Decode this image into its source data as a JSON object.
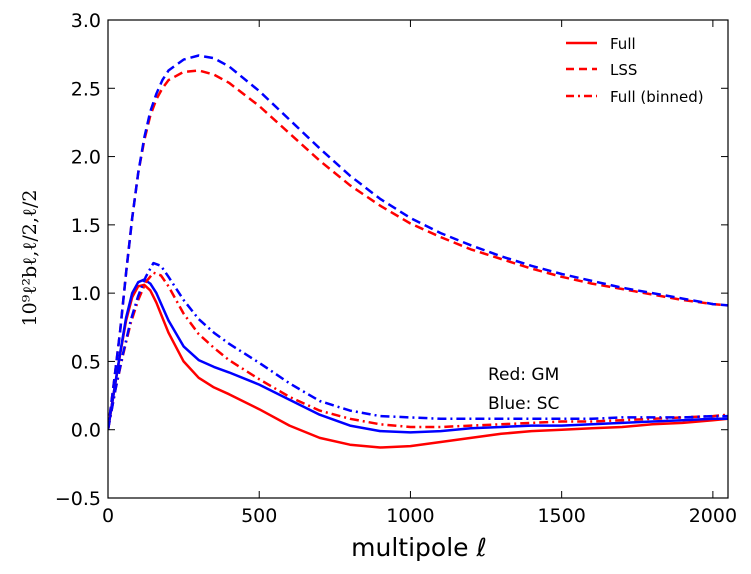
{
  "chart_data": {
    "type": "line",
    "title": "",
    "xlabel": "multipole ℓ",
    "ylabel": "10⁹ℓ²bℓ,ℓ/2,ℓ/2",
    "xlim": [
      0,
      2050
    ],
    "ylim": [
      -0.5,
      3.0
    ],
    "grid": false,
    "legend_position": "top-right",
    "xticks": [
      0,
      500,
      1000,
      1500,
      2000
    ],
    "xtick_labels": [
      "0",
      "500",
      "1000",
      "1500",
      "2000"
    ],
    "yticks": [
      -0.5,
      0.0,
      0.5,
      1.0,
      1.5,
      2.0,
      2.5,
      3.0
    ],
    "ytick_labels": [
      "−0.5",
      "0.0",
      "0.5",
      "1.0",
      "1.5",
      "2.0",
      "2.5",
      "3.0"
    ],
    "legend": [
      {
        "label": "Full",
        "style": "solid",
        "color": "#ff0000"
      },
      {
        "label": "LSS",
        "style": "dashed",
        "color": "#ff0000"
      },
      {
        "label": "Full (binned)",
        "style": "dashdot",
        "color": "#ff0000"
      }
    ],
    "annotations": [
      "Red: GM",
      "Blue: SC"
    ],
    "series": [
      {
        "name": "Full (GM)",
        "color": "#ff0000",
        "style": "solid",
        "x": [
          0,
          20,
          40,
          60,
          80,
          100,
          120,
          140,
          160,
          180,
          200,
          250,
          300,
          350,
          400,
          500,
          600,
          700,
          800,
          900,
          1000,
          1100,
          1200,
          1300,
          1400,
          1500,
          1600,
          1700,
          1800,
          1900,
          2000,
          2050
        ],
        "y": [
          0.0,
          0.28,
          0.55,
          0.8,
          0.97,
          1.05,
          1.06,
          1.02,
          0.93,
          0.82,
          0.71,
          0.5,
          0.38,
          0.31,
          0.26,
          0.15,
          0.03,
          -0.06,
          -0.11,
          -0.13,
          -0.12,
          -0.09,
          -0.06,
          -0.03,
          -0.01,
          0.0,
          0.01,
          0.02,
          0.04,
          0.05,
          0.07,
          0.08
        ]
      },
      {
        "name": "Full (SC)",
        "color": "#0000ff",
        "style": "solid",
        "x": [
          0,
          20,
          40,
          60,
          80,
          100,
          120,
          140,
          160,
          180,
          200,
          250,
          300,
          350,
          400,
          500,
          600,
          700,
          800,
          900,
          1000,
          1100,
          1200,
          1300,
          1400,
          1500,
          1600,
          1700,
          1800,
          1900,
          2000,
          2050
        ],
        "y": [
          0.0,
          0.28,
          0.56,
          0.82,
          1.0,
          1.08,
          1.1,
          1.07,
          1.0,
          0.9,
          0.8,
          0.61,
          0.51,
          0.46,
          0.42,
          0.33,
          0.22,
          0.11,
          0.03,
          -0.01,
          -0.02,
          -0.01,
          0.01,
          0.02,
          0.03,
          0.03,
          0.04,
          0.05,
          0.06,
          0.07,
          0.08,
          0.08
        ]
      },
      {
        "name": "LSS (GM)",
        "color": "#ff0000",
        "style": "dashed",
        "x": [
          0,
          20,
          40,
          60,
          80,
          100,
          120,
          140,
          160,
          180,
          200,
          250,
          300,
          350,
          400,
          500,
          600,
          700,
          800,
          900,
          1000,
          1100,
          1200,
          1300,
          1400,
          1500,
          1600,
          1700,
          1800,
          1900,
          2000,
          2050
        ],
        "y": [
          0.0,
          0.35,
          0.72,
          1.15,
          1.55,
          1.88,
          2.12,
          2.3,
          2.42,
          2.5,
          2.56,
          2.62,
          2.63,
          2.6,
          2.54,
          2.37,
          2.17,
          1.97,
          1.79,
          1.64,
          1.51,
          1.41,
          1.32,
          1.25,
          1.18,
          1.12,
          1.07,
          1.03,
          0.99,
          0.95,
          0.92,
          0.91
        ]
      },
      {
        "name": "LSS (SC)",
        "color": "#0000ff",
        "style": "dashed",
        "x": [
          0,
          20,
          40,
          60,
          80,
          100,
          120,
          140,
          160,
          180,
          200,
          250,
          300,
          350,
          400,
          500,
          600,
          700,
          800,
          900,
          1000,
          1100,
          1200,
          1300,
          1400,
          1500,
          1600,
          1700,
          1800,
          1900,
          2000,
          2050
        ],
        "y": [
          0.0,
          0.35,
          0.72,
          1.15,
          1.55,
          1.88,
          2.14,
          2.33,
          2.46,
          2.56,
          2.63,
          2.71,
          2.74,
          2.72,
          2.66,
          2.48,
          2.27,
          2.06,
          1.86,
          1.69,
          1.55,
          1.44,
          1.35,
          1.27,
          1.2,
          1.14,
          1.09,
          1.04,
          1.0,
          0.96,
          0.92,
          0.91
        ]
      },
      {
        "name": "Full binned (GM)",
        "color": "#ff0000",
        "style": "dashdot",
        "x": [
          0,
          25,
          50,
          75,
          100,
          125,
          150,
          175,
          200,
          250,
          300,
          350,
          400,
          500,
          600,
          700,
          800,
          900,
          1000,
          1100,
          1200,
          1300,
          1400,
          1500,
          1600,
          1700,
          1800,
          1900,
          2000,
          2050
        ],
        "y": [
          0.0,
          0.3,
          0.55,
          0.78,
          0.95,
          1.08,
          1.15,
          1.13,
          1.05,
          0.85,
          0.7,
          0.6,
          0.51,
          0.37,
          0.24,
          0.14,
          0.08,
          0.04,
          0.02,
          0.02,
          0.03,
          0.04,
          0.05,
          0.06,
          0.06,
          0.07,
          0.08,
          0.09,
          0.1,
          0.11
        ]
      },
      {
        "name": "Full binned (SC)",
        "color": "#0000ff",
        "style": "dashdot",
        "x": [
          0,
          25,
          50,
          75,
          100,
          125,
          150,
          175,
          200,
          250,
          300,
          350,
          400,
          500,
          600,
          700,
          800,
          900,
          1000,
          1100,
          1200,
          1300,
          1400,
          1500,
          1600,
          1700,
          1800,
          1900,
          2000,
          2050
        ],
        "y": [
          0.0,
          0.3,
          0.56,
          0.8,
          0.98,
          1.12,
          1.22,
          1.2,
          1.12,
          0.95,
          0.81,
          0.71,
          0.63,
          0.49,
          0.34,
          0.21,
          0.14,
          0.1,
          0.09,
          0.08,
          0.08,
          0.08,
          0.08,
          0.08,
          0.08,
          0.09,
          0.09,
          0.09,
          0.1,
          0.1
        ]
      }
    ]
  }
}
